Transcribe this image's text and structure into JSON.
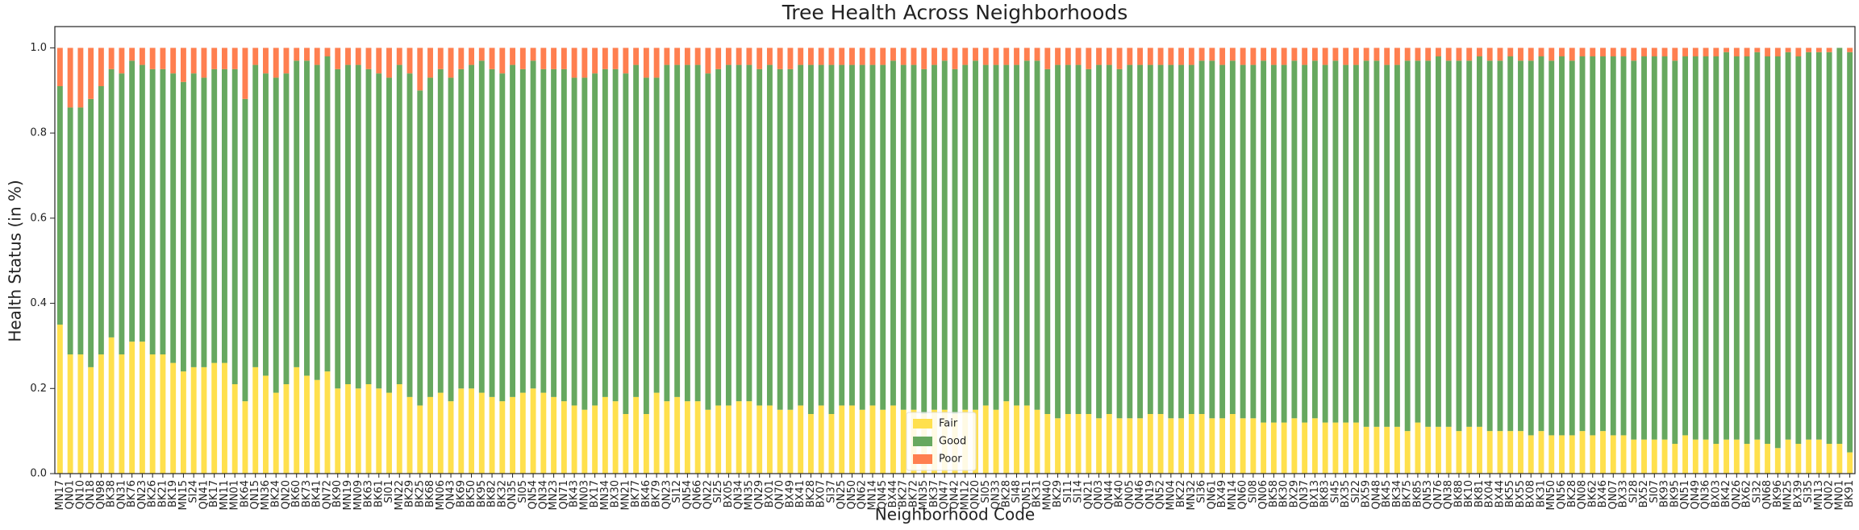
{
  "chart_data": {
    "type": "stacked_bar",
    "title": "Tree Health Across Neighborhoods",
    "x_label": "Neighborhood Code",
    "y_label": "Health Status (in %)",
    "categories": [
      "MN17",
      "QN01",
      "QN10",
      "QN18",
      "QN98",
      "BK38",
      "QN31",
      "BK76",
      "QN23",
      "BK26",
      "BK21",
      "BK19",
      "MN15",
      "SI24",
      "QN41",
      "BK17",
      "MN11",
      "MN01",
      "BK64",
      "QN15",
      "MN36",
      "BK24",
      "QN20",
      "BK60",
      "BK73",
      "BK41",
      "QN72",
      "BK90",
      "MN19",
      "MN09",
      "BK63",
      "BK61",
      "SI01",
      "MN22",
      "BK29",
      "BK25",
      "BK68",
      "MN06",
      "QN43",
      "BK69",
      "BK50",
      "BK95",
      "BK82",
      "BK32",
      "QN35",
      "SI05",
      "QN54",
      "QN34",
      "MN23",
      "QN71",
      "BK43",
      "MN03",
      "BX17",
      "MN34",
      "BX30",
      "MN21",
      "BK77",
      "BK46",
      "BK79",
      "QN23",
      "SI12",
      "QN54",
      "QN66",
      "QN22",
      "SI25",
      "BX05",
      "QN34",
      "MN35",
      "QN29",
      "BX01",
      "QN70",
      "BX49",
      "BX41",
      "BK28",
      "BX07",
      "SI37",
      "QN25",
      "QN50",
      "QN62",
      "MN14",
      "QN45",
      "BX44",
      "BK27",
      "BK72",
      "MN35",
      "BK37",
      "QN47",
      "QN42",
      "MN12",
      "QN20",
      "SI05",
      "QN33",
      "BK28",
      "SI48",
      "QN51",
      "BK31",
      "MN40",
      "BK29",
      "SI11",
      "SI14",
      "QN21",
      "QN03",
      "QN44",
      "BK40",
      "QN05",
      "QN46",
      "QN19",
      "QN52",
      "MN04",
      "BK22",
      "MN32",
      "SI36",
      "QN61",
      "BX49",
      "MN14",
      "QN60",
      "SI08",
      "QN06",
      "BK58",
      "BK30",
      "BX29",
      "QN37",
      "BX13",
      "BK83",
      "SI45",
      "BX35",
      "SI22",
      "BX59",
      "QN48",
      "BK45",
      "BK34",
      "BK75",
      "BK85",
      "QN53",
      "QN76",
      "QN38",
      "BK88",
      "BK10",
      "BK81",
      "BX04",
      "BX44",
      "BK55",
      "BX55",
      "BX08",
      "BK31",
      "MN50",
      "QN56",
      "BK28",
      "QN08",
      "BK62",
      "BX46",
      "QN07",
      "BX33",
      "SI28",
      "BX52",
      "SI07",
      "BK93",
      "BK95",
      "QN51",
      "QN49",
      "QN36",
      "BX03",
      "BK42",
      "QN26",
      "BX62",
      "SI32",
      "QN68",
      "BK96",
      "MN25",
      "BX39",
      "SI35",
      "MN13",
      "QN02",
      "MN01",
      "BK91"
    ],
    "series": [
      {
        "name": "Fair",
        "color": "#ffe04d",
        "values": [
          0.35,
          0.28,
          0.28,
          0.25,
          0.28,
          0.32,
          0.28,
          0.31,
          0.31,
          0.28,
          0.28,
          0.26,
          0.24,
          0.25,
          0.25,
          0.26,
          0.26,
          0.21,
          0.17,
          0.25,
          0.23,
          0.19,
          0.21,
          0.25,
          0.23,
          0.22,
          0.24,
          0.2,
          0.21,
          0.2,
          0.21,
          0.2,
          0.19,
          0.21,
          0.18,
          0.16,
          0.18,
          0.19,
          0.17,
          0.2,
          0.2,
          0.19,
          0.18,
          0.17,
          0.18,
          0.19,
          0.2,
          0.19,
          0.18,
          0.17,
          0.16,
          0.15,
          0.16,
          0.18,
          0.17,
          0.14,
          0.18,
          0.14,
          0.19,
          0.17,
          0.18,
          0.17,
          0.17,
          0.15,
          0.16,
          0.16,
          0.17,
          0.17,
          0.16,
          0.16,
          0.15,
          0.15,
          0.16,
          0.14,
          0.16,
          0.14,
          0.16,
          0.16,
          0.15,
          0.16,
          0.15,
          0.16,
          0.15,
          0.15,
          0.14,
          0.15,
          0.15,
          0.14,
          0.15,
          0.15,
          0.16,
          0.15,
          0.17,
          0.16,
          0.16,
          0.15,
          0.14,
          0.13,
          0.14,
          0.14,
          0.14,
          0.13,
          0.14,
          0.13,
          0.13,
          0.13,
          0.14,
          0.14,
          0.13,
          0.13,
          0.14,
          0.14,
          0.13,
          0.13,
          0.14,
          0.13,
          0.13,
          0.12,
          0.12,
          0.12,
          0.13,
          0.12,
          0.13,
          0.12,
          0.12,
          0.12,
          0.12,
          0.11,
          0.11,
          0.11,
          0.11,
          0.1,
          0.12,
          0.11,
          0.11,
          0.11,
          0.1,
          0.11,
          0.11,
          0.1,
          0.1,
          0.1,
          0.1,
          0.09,
          0.1,
          0.09,
          0.09,
          0.09,
          0.1,
          0.09,
          0.1,
          0.09,
          0.09,
          0.08,
          0.08,
          0.08,
          0.08,
          0.07,
          0.09,
          0.08,
          0.08,
          0.07,
          0.08,
          0.08,
          0.07,
          0.08,
          0.07,
          0.06,
          0.08,
          0.07,
          0.08,
          0.08,
          0.07,
          0.07,
          0.05
        ]
      },
      {
        "name": "Good",
        "color": "#67a85f",
        "values": [
          0.56,
          0.58,
          0.58,
          0.63,
          0.63,
          0.63,
          0.66,
          0.66,
          0.65,
          0.67,
          0.67,
          0.68,
          0.68,
          0.69,
          0.68,
          0.69,
          0.69,
          0.74,
          0.71,
          0.71,
          0.71,
          0.74,
          0.73,
          0.72,
          0.74,
          0.74,
          0.74,
          0.75,
          0.75,
          0.76,
          0.74,
          0.74,
          0.74,
          0.75,
          0.76,
          0.74,
          0.75,
          0.76,
          0.76,
          0.75,
          0.76,
          0.78,
          0.77,
          0.77,
          0.78,
          0.76,
          0.77,
          0.76,
          0.77,
          0.78,
          0.77,
          0.78,
          0.78,
          0.77,
          0.78,
          0.8,
          0.78,
          0.79,
          0.74,
          0.79,
          0.78,
          0.79,
          0.79,
          0.79,
          0.79,
          0.8,
          0.79,
          0.79,
          0.79,
          0.8,
          0.8,
          0.8,
          0.8,
          0.82,
          0.8,
          0.82,
          0.8,
          0.8,
          0.81,
          0.8,
          0.81,
          0.81,
          0.81,
          0.81,
          0.81,
          0.81,
          0.82,
          0.81,
          0.81,
          0.82,
          0.8,
          0.81,
          0.79,
          0.8,
          0.81,
          0.82,
          0.81,
          0.83,
          0.82,
          0.82,
          0.81,
          0.83,
          0.82,
          0.82,
          0.83,
          0.83,
          0.82,
          0.82,
          0.83,
          0.83,
          0.82,
          0.83,
          0.84,
          0.83,
          0.83,
          0.83,
          0.83,
          0.85,
          0.84,
          0.84,
          0.84,
          0.84,
          0.84,
          0.84,
          0.85,
          0.84,
          0.84,
          0.86,
          0.86,
          0.85,
          0.85,
          0.87,
          0.85,
          0.86,
          0.87,
          0.86,
          0.87,
          0.86,
          0.87,
          0.87,
          0.87,
          0.88,
          0.87,
          0.88,
          0.88,
          0.88,
          0.89,
          0.88,
          0.88,
          0.89,
          0.88,
          0.89,
          0.89,
          0.89,
          0.9,
          0.9,
          0.9,
          0.9,
          0.89,
          0.9,
          0.9,
          0.91,
          0.91,
          0.9,
          0.91,
          0.91,
          0.91,
          0.92,
          0.91,
          0.91,
          0.91,
          0.91,
          0.92,
          0.93,
          0.94
        ]
      },
      {
        "name": "Poor",
        "color": "#ff7f50",
        "values": [
          0.09,
          0.14,
          0.14,
          0.12,
          0.09,
          0.05,
          0.06,
          0.03,
          0.04,
          0.05,
          0.05,
          0.06,
          0.08,
          0.06,
          0.07,
          0.05,
          0.05,
          0.05,
          0.12,
          0.04,
          0.06,
          0.07,
          0.06,
          0.03,
          0.03,
          0.04,
          0.02,
          0.05,
          0.04,
          0.04,
          0.05,
          0.06,
          0.07,
          0.04,
          0.06,
          0.1,
          0.07,
          0.05,
          0.07,
          0.05,
          0.04,
          0.03,
          0.05,
          0.06,
          0.04,
          0.05,
          0.03,
          0.05,
          0.05,
          0.05,
          0.07,
          0.07,
          0.06,
          0.05,
          0.05,
          0.06,
          0.04,
          0.07,
          0.07,
          0.04,
          0.04,
          0.04,
          0.04,
          0.06,
          0.05,
          0.04,
          0.04,
          0.04,
          0.05,
          0.04,
          0.05,
          0.05,
          0.04,
          0.04,
          0.04,
          0.04,
          0.04,
          0.04,
          0.04,
          0.04,
          0.04,
          0.03,
          0.04,
          0.04,
          0.05,
          0.04,
          0.03,
          0.05,
          0.04,
          0.03,
          0.04,
          0.04,
          0.04,
          0.04,
          0.03,
          0.03,
          0.05,
          0.04,
          0.04,
          0.04,
          0.05,
          0.04,
          0.04,
          0.05,
          0.04,
          0.04,
          0.04,
          0.04,
          0.04,
          0.04,
          0.04,
          0.03,
          0.03,
          0.04,
          0.03,
          0.04,
          0.04,
          0.03,
          0.04,
          0.04,
          0.03,
          0.04,
          0.03,
          0.04,
          0.03,
          0.04,
          0.04,
          0.03,
          0.03,
          0.04,
          0.04,
          0.03,
          0.03,
          0.03,
          0.02,
          0.03,
          0.03,
          0.03,
          0.02,
          0.03,
          0.03,
          0.02,
          0.03,
          0.03,
          0.02,
          0.03,
          0.02,
          0.03,
          0.02,
          0.02,
          0.02,
          0.02,
          0.02,
          0.03,
          0.02,
          0.02,
          0.02,
          0.03,
          0.02,
          0.02,
          0.02,
          0.02,
          0.01,
          0.02,
          0.02,
          0.01,
          0.02,
          0.02,
          0.01,
          0.02,
          0.01,
          0.01,
          0.01,
          0.0,
          0.01
        ]
      }
    ],
    "ylim": [
      0,
      1.05
    ],
    "yticks": [
      {
        "value": 0,
        "label": "0.0"
      },
      {
        "value": 0.2,
        "label": "0.2"
      },
      {
        "value": 0.4,
        "label": "0.4"
      },
      {
        "value": 0.6,
        "label": "0.6"
      },
      {
        "value": 0.8,
        "label": "0.8"
      },
      {
        "value": 1,
        "label": "1.0"
      }
    ],
    "legend": "lower center"
  }
}
